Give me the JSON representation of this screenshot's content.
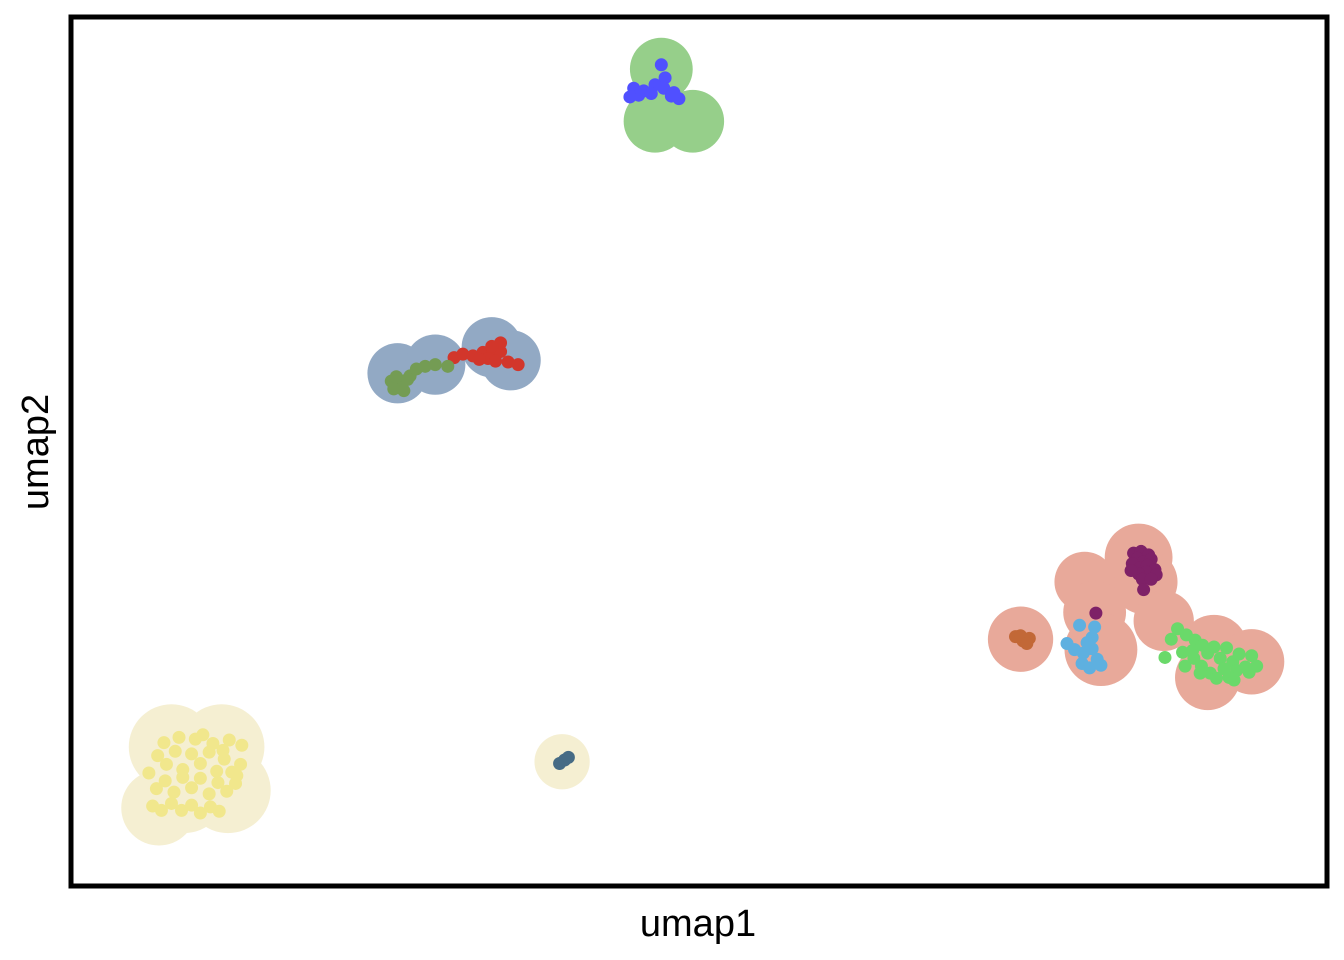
{
  "chart_data": {
    "type": "scatter",
    "title": "",
    "xlabel": "umap1",
    "ylabel": "umap2",
    "xlim": [
      0,
      100
    ],
    "ylim": [
      0,
      100
    ],
    "show_ticks": false,
    "grid": false,
    "legend": "none",
    "frame_color": "#000000",
    "halos": [
      {
        "group": "top",
        "color": "#96cf8a",
        "centers": [
          [
            47,
            94
          ],
          [
            46.5,
            88
          ],
          [
            49.5,
            88
          ]
        ],
        "radii": [
          2.5,
          2.5,
          2.5
        ]
      },
      {
        "group": "upper-left",
        "color": "#92a9c4",
        "centers": [
          [
            26,
            59
          ],
          [
            29,
            60
          ],
          [
            33.5,
            62
          ],
          [
            35,
            60.5
          ]
        ],
        "radii": [
          2.4,
          2.4,
          2.4,
          2.4
        ]
      },
      {
        "group": "right",
        "color": "#e8a99a",
        "centers": [
          [
            85,
            37.8
          ],
          [
            85.5,
            35
          ],
          [
            80.7,
            35
          ],
          [
            81.5,
            31.5
          ],
          [
            75.6,
            28.4
          ],
          [
            82,
            27.2
          ],
          [
            87,
            30.5
          ],
          [
            91,
            27.3
          ],
          [
            94,
            25.8
          ],
          [
            90.5,
            24
          ]
        ],
        "radii": [
          2.7,
          2.6,
          2.4,
          2.5,
          2.6,
          2.9,
          2.4,
          2.7,
          2.6,
          2.6
        ]
      },
      {
        "group": "bottom-left",
        "color": "#f5efd2",
        "centers": [
          [
            8,
            16
          ],
          [
            12,
            16
          ],
          [
            9,
            11
          ],
          [
            12.5,
            11
          ],
          [
            7,
            9
          ]
        ],
        "radii": [
          3.4,
          3.4,
          3.4,
          3.4,
          3
        ]
      },
      {
        "group": "bottom-middle",
        "color": "#f5efd2",
        "centers": [
          [
            39.1,
            14.3
          ]
        ],
        "radii": [
          2.2
        ]
      }
    ],
    "series": [
      {
        "color": "#5050ff",
        "points": [
          [
            47,
            94.5
          ],
          [
            47.3,
            93
          ],
          [
            46.5,
            92.2
          ],
          [
            45.6,
            91.5
          ],
          [
            44.8,
            91.8
          ],
          [
            45.2,
            91
          ],
          [
            44.5,
            90.8
          ],
          [
            46.2,
            91.2
          ],
          [
            47.2,
            91.8
          ],
          [
            48,
            91.3
          ],
          [
            48.4,
            90.6
          ],
          [
            47.8,
            90.9
          ]
        ]
      },
      {
        "color": "#d2362b",
        "points": [
          [
            30.5,
            60.8
          ],
          [
            31.2,
            61.2
          ],
          [
            32,
            61
          ],
          [
            32.8,
            61.4
          ],
          [
            33.5,
            61.1
          ],
          [
            34.2,
            61.5
          ],
          [
            33.2,
            60.7
          ],
          [
            34.8,
            60.3
          ],
          [
            35.6,
            60
          ],
          [
            33.8,
            60.4
          ],
          [
            32.5,
            60.6
          ],
          [
            34.2,
            62.5
          ],
          [
            33.5,
            62.1
          ]
        ]
      },
      {
        "color": "#749c54",
        "points": [
          [
            27,
            58.7
          ],
          [
            26.4,
            58.1
          ],
          [
            25.8,
            57.6
          ],
          [
            26.2,
            57.3
          ],
          [
            25.5,
            58.1
          ],
          [
            26.8,
            58.3
          ],
          [
            25.9,
            58.6
          ],
          [
            26.5,
            57
          ],
          [
            25.7,
            57.2
          ],
          [
            27.5,
            59.5
          ],
          [
            28.2,
            59.8
          ],
          [
            29,
            60
          ],
          [
            30,
            59.8
          ]
        ]
      },
      {
        "color": "#7e2167",
        "points": [
          [
            84.6,
            38.3
          ],
          [
            85.2,
            38.5
          ],
          [
            85.8,
            38.1
          ],
          [
            84.9,
            37.7
          ],
          [
            85.4,
            37.3
          ],
          [
            86,
            37.6
          ],
          [
            84.5,
            37.1
          ],
          [
            85.1,
            36.6
          ],
          [
            85.7,
            36.9
          ],
          [
            86.3,
            36.4
          ],
          [
            85.6,
            36.1
          ],
          [
            86.4,
            35.8
          ],
          [
            85,
            35.9
          ],
          [
            84.4,
            36.3
          ],
          [
            85.3,
            35.3
          ],
          [
            86,
            35.3
          ],
          [
            85.4,
            34.1
          ],
          [
            81.6,
            31.4
          ]
        ]
      },
      {
        "color": "#6ad96a",
        "points": [
          [
            88.1,
            29.6
          ],
          [
            88.8,
            28.9
          ],
          [
            89.5,
            28.3
          ],
          [
            89.3,
            27.1
          ],
          [
            90.1,
            27.7
          ],
          [
            90.5,
            26.8
          ],
          [
            91,
            27.5
          ],
          [
            91.5,
            26.2
          ],
          [
            92,
            27.4
          ],
          [
            92.5,
            25.8
          ],
          [
            93,
            26.7
          ],
          [
            93.5,
            25.2
          ],
          [
            94,
            26.5
          ],
          [
            94.4,
            25.3
          ],
          [
            93.8,
            24.6
          ],
          [
            92.8,
            24.8
          ],
          [
            91.8,
            25
          ],
          [
            90.7,
            24.5
          ],
          [
            91.2,
            23.9
          ],
          [
            92.2,
            24
          ],
          [
            90,
            25.3
          ],
          [
            89.4,
            26.2
          ],
          [
            88.5,
            26.9
          ],
          [
            87.6,
            28.4
          ],
          [
            87.1,
            26.3
          ],
          [
            88.7,
            25.3
          ],
          [
            89.9,
            24.5
          ],
          [
            92.6,
            23.7
          ]
        ]
      },
      {
        "color": "#5eb0e0",
        "points": [
          [
            80.3,
            30
          ],
          [
            81.5,
            29.8
          ],
          [
            81.3,
            28.6
          ],
          [
            79.9,
            27.2
          ],
          [
            80.6,
            26.8
          ],
          [
            79.3,
            27.9
          ],
          [
            80.5,
            25.6
          ],
          [
            81.1,
            25.1
          ],
          [
            81.7,
            26.1
          ],
          [
            82,
            25.4
          ],
          [
            81.3,
            27.3
          ],
          [
            80.9,
            28
          ]
        ]
      },
      {
        "color": "#c26837",
        "points": [
          [
            75.2,
            28.7
          ],
          [
            75.8,
            28.2
          ],
          [
            76.3,
            28.5
          ],
          [
            75.6,
            28.8
          ],
          [
            76.1,
            27.9
          ]
        ]
      },
      {
        "color": "#f1e78c",
        "points": [
          [
            6.2,
            13
          ],
          [
            6.9,
            15
          ],
          [
            7.6,
            14
          ],
          [
            8.3,
            15.5
          ],
          [
            8.9,
            13.4
          ],
          [
            9.6,
            15.2
          ],
          [
            10.3,
            14.1
          ],
          [
            11,
            15.4
          ],
          [
            11.6,
            13.2
          ],
          [
            12.2,
            14.6
          ],
          [
            12.8,
            13.1
          ],
          [
            6.8,
            11.2
          ],
          [
            7.5,
            12.1
          ],
          [
            8.2,
            10.8
          ],
          [
            8.9,
            12.5
          ],
          [
            9.6,
            11.3
          ],
          [
            10.3,
            12.4
          ],
          [
            11,
            10.6
          ],
          [
            11.7,
            11.9
          ],
          [
            12.4,
            10.9
          ],
          [
            6.5,
            9.2
          ],
          [
            7.2,
            8.7
          ],
          [
            8,
            9.5
          ],
          [
            8.8,
            8.7
          ],
          [
            9.6,
            9.3
          ],
          [
            10.3,
            8.4
          ],
          [
            11.1,
            9.1
          ],
          [
            11.8,
            8.6
          ],
          [
            7.4,
            16.5
          ],
          [
            8.6,
            17.1
          ],
          [
            9.9,
            16.9
          ],
          [
            11.3,
            16.4
          ],
          [
            12.6,
            16.8
          ],
          [
            13.6,
            16.2
          ],
          [
            13.5,
            14
          ],
          [
            13.1,
            11.8
          ],
          [
            10.5,
            17.4
          ],
          [
            12.1,
            15.6
          ],
          [
            13.2,
            12.7
          ]
        ]
      },
      {
        "color": "#466b85",
        "points": [
          [
            38.9,
            14.1
          ],
          [
            39.3,
            14.5
          ],
          [
            39.6,
            14.8
          ]
        ]
      }
    ]
  }
}
